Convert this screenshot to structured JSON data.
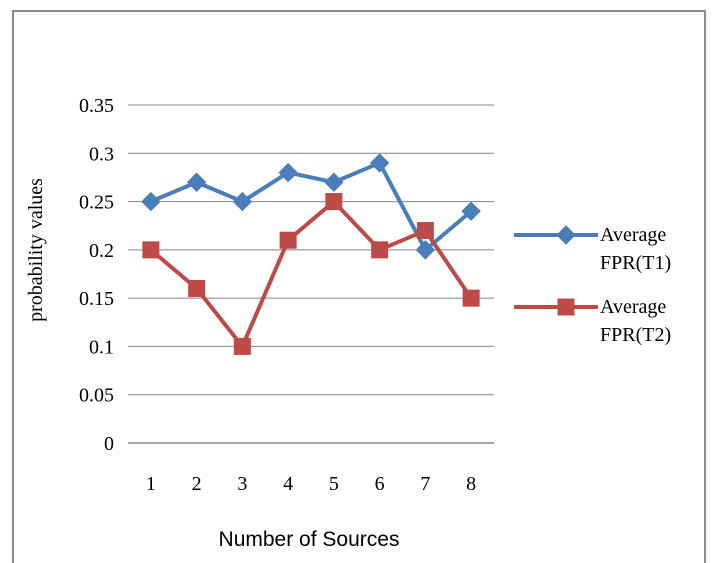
{
  "chart_data": {
    "type": "line",
    "title": "",
    "xlabel": "Number of Sources",
    "ylabel": "probability values",
    "x": [
      "1",
      "2",
      "3",
      "4",
      "5",
      "6",
      "7",
      "8"
    ],
    "yticks": [
      "0",
      "0.05",
      "0.1",
      "0.15",
      "0.2",
      "0.25",
      "0.3",
      "0.35"
    ],
    "ylim": [
      0,
      0.35
    ],
    "grid": true,
    "legend": "right",
    "series": [
      {
        "name": "Average FPR(T1)",
        "legend_lines": [
          "Average",
          "FPR(T1)"
        ],
        "color": "#4a7ebb",
        "marker": "diamond",
        "values": [
          0.25,
          0.27,
          0.25,
          0.28,
          0.27,
          0.29,
          0.2,
          0.24
        ]
      },
      {
        "name": "Average FPR(T2)",
        "legend_lines": [
          "Average",
          "FPR(T2)"
        ],
        "color": "#be4b48",
        "marker": "square",
        "values": [
          0.2,
          0.16,
          0.1,
          0.21,
          0.25,
          0.2,
          0.22,
          0.15
        ]
      }
    ]
  }
}
